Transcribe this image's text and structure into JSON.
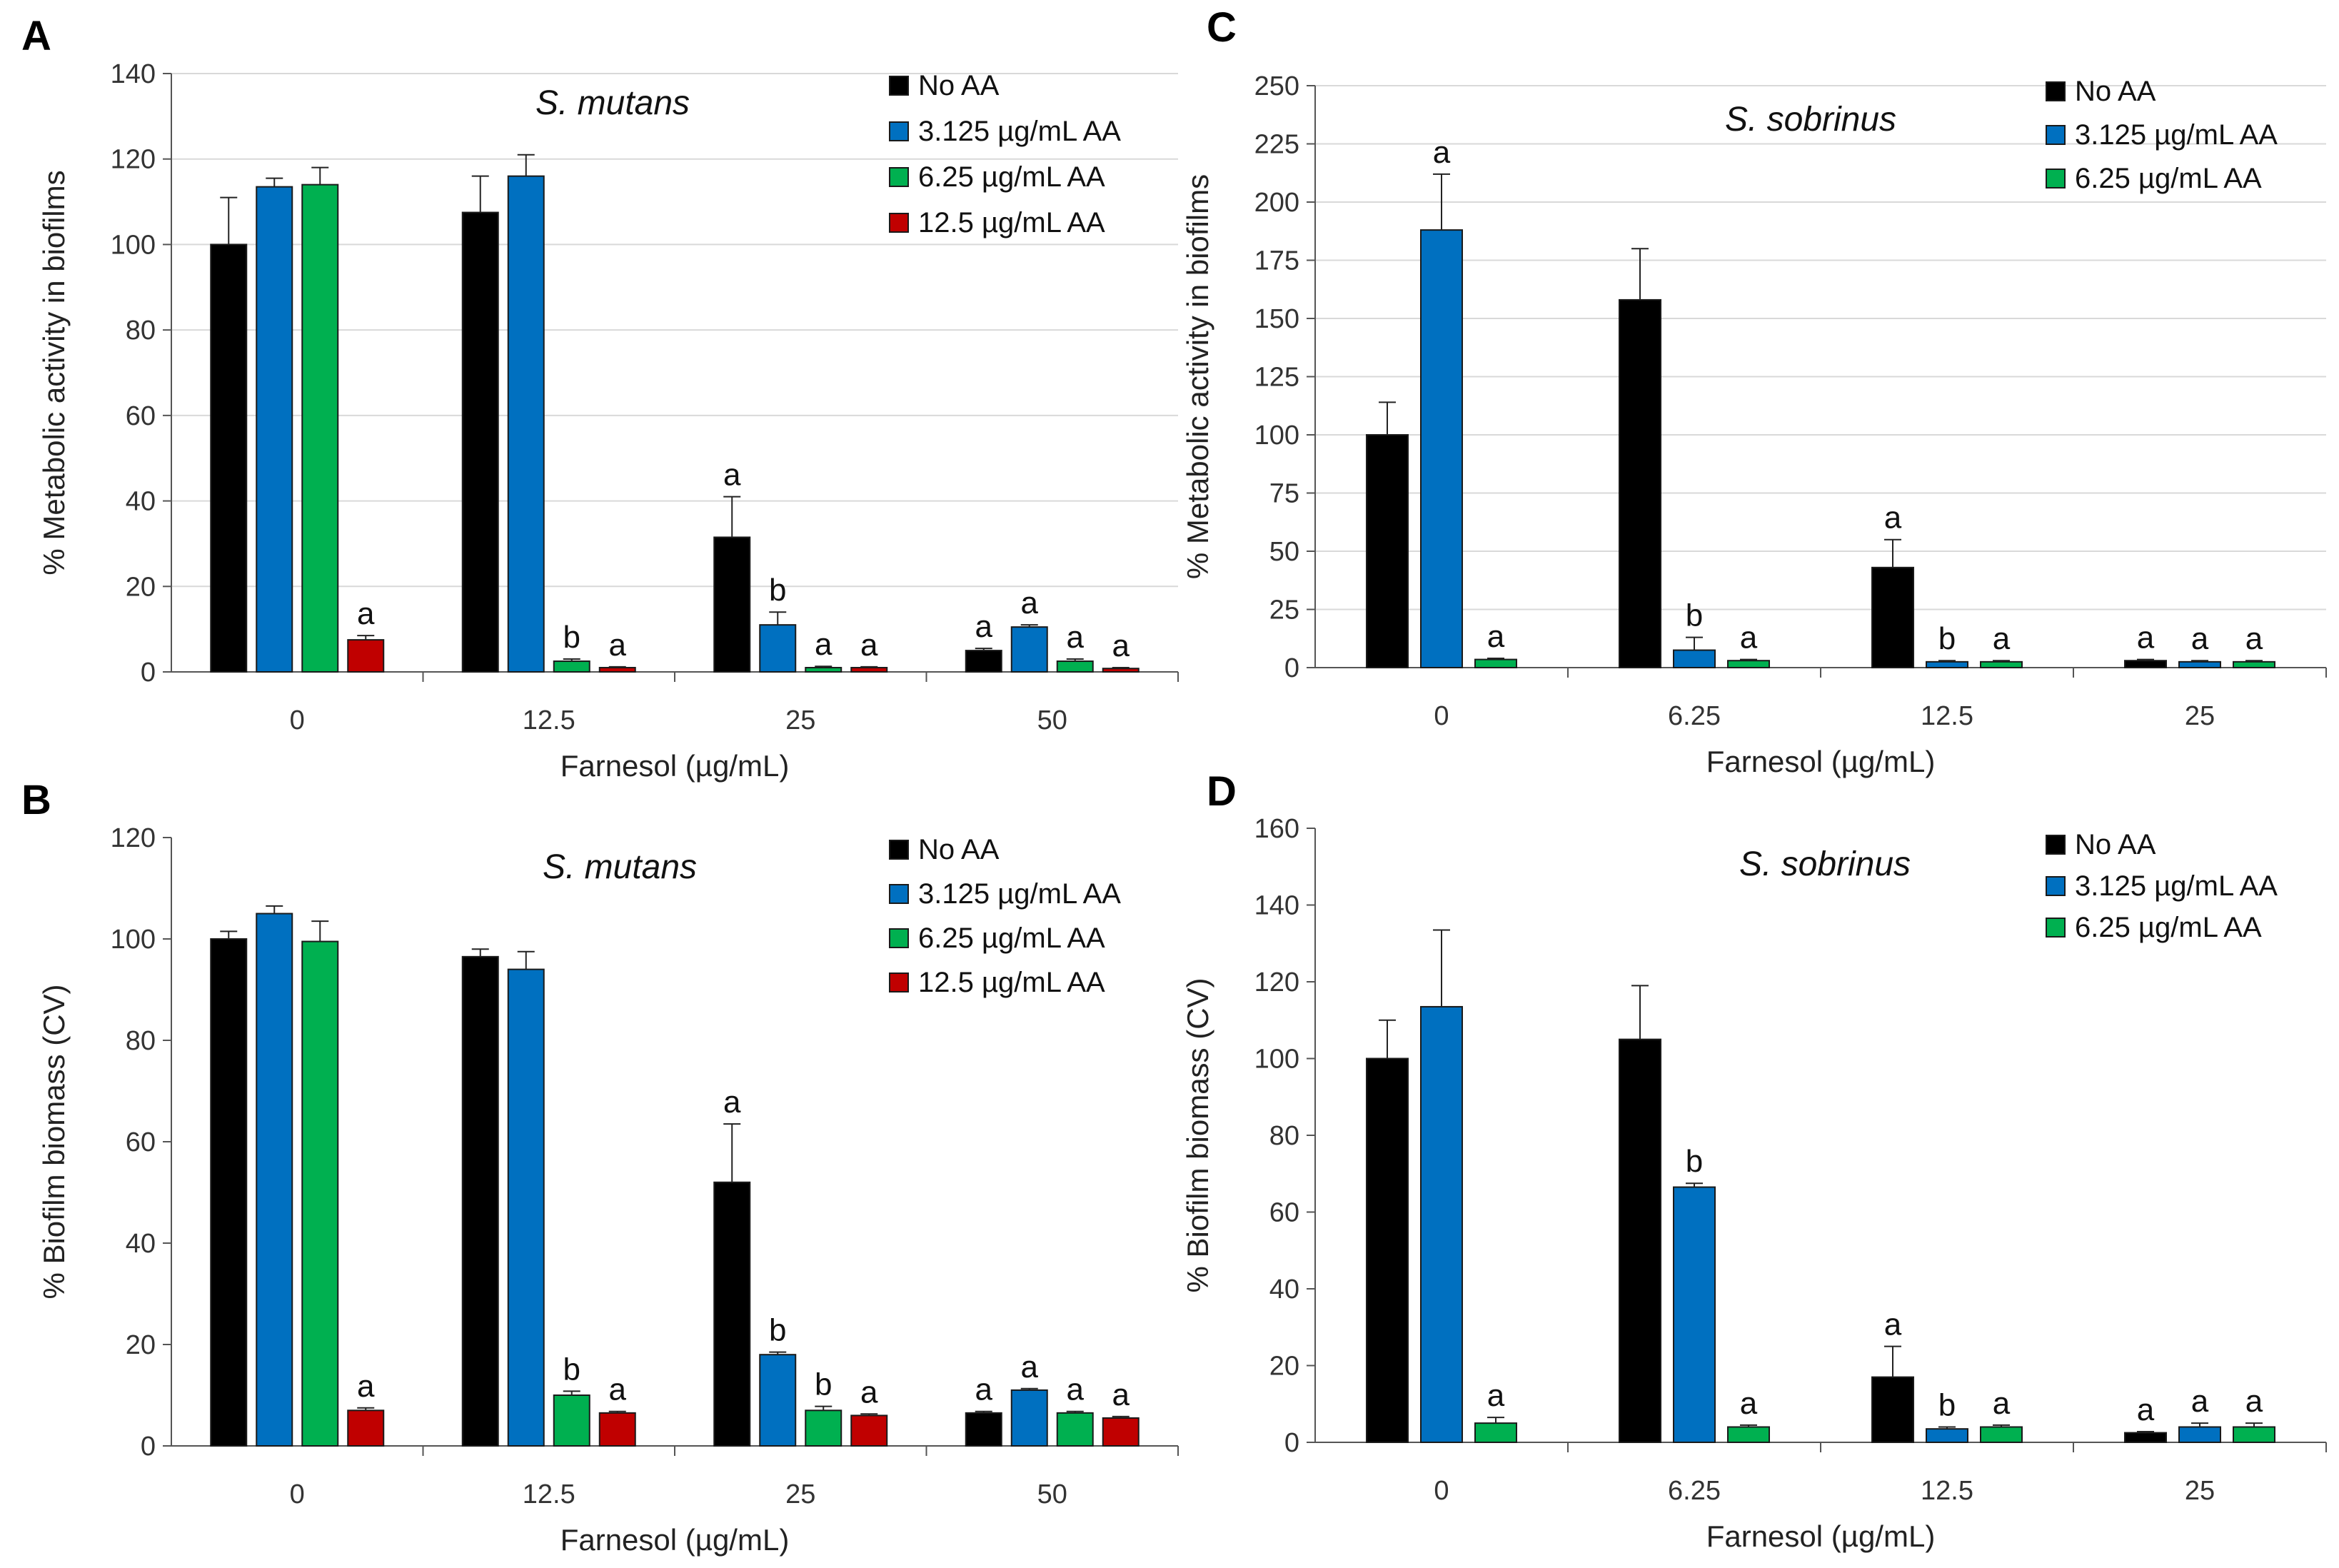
{
  "figure": {
    "colors": {
      "No AA": "#000000",
      "3.125 µg/mL AA": "#0070C0",
      "6.25 µg/mL AA": "#00B050",
      "12.5 µg/mL AA": "#C00000"
    }
  },
  "chart_data": [
    {
      "panel": "A",
      "type": "bar",
      "title": "S. mutans",
      "xlabel": "Farnesol (µg/mL)",
      "ylabel": "% Metabolic activity in biofilms",
      "ylim": [
        0,
        140
      ],
      "ystep": 20,
      "grid": true,
      "legend": "top-right",
      "categories": [
        "0",
        "12.5",
        "25",
        "50"
      ],
      "series": [
        {
          "name": "No AA",
          "values": [
            100,
            107.5,
            31.5,
            5
          ],
          "errors": [
            11,
            8.5,
            9.5,
            0.5
          ],
          "labels": [
            "",
            "",
            "a",
            "a"
          ]
        },
        {
          "name": "3.125 µg/mL AA",
          "values": [
            113.5,
            116,
            11,
            10.5
          ],
          "errors": [
            2,
            5,
            3,
            0.5
          ],
          "labels": [
            "",
            "",
            "b",
            "a"
          ]
        },
        {
          "name": "6.25 µg/mL AA",
          "values": [
            114,
            2.5,
            1,
            2.5
          ],
          "errors": [
            4,
            0.5,
            0.3,
            0.5
          ],
          "labels": [
            "",
            "b",
            "a",
            "a"
          ]
        },
        {
          "name": "12.5 µg/mL AA",
          "values": [
            7.5,
            1,
            1,
            0.8
          ],
          "errors": [
            1,
            0.2,
            0.2,
            0.2
          ],
          "labels": [
            "a",
            "a",
            "a",
            "a"
          ]
        }
      ]
    },
    {
      "panel": "B",
      "type": "bar",
      "title": "S. mutans",
      "xlabel": "Farnesol (µg/mL)",
      "ylabel": "% Biofilm biomass (CV)",
      "ylim": [
        0,
        120
      ],
      "ystep": 20,
      "grid": false,
      "legend": "top-right",
      "categories": [
        "0",
        "12.5",
        "25",
        "50"
      ],
      "series": [
        {
          "name": "No AA",
          "values": [
            100,
            96.5,
            52,
            6.5
          ],
          "errors": [
            1.5,
            1.5,
            11.5,
            0.3
          ],
          "labels": [
            "",
            "",
            "a",
            "a"
          ]
        },
        {
          "name": "3.125 µg/mL AA",
          "values": [
            105,
            94,
            18,
            11
          ],
          "errors": [
            1.5,
            3.5,
            0.5,
            0.3
          ],
          "labels": [
            "",
            "",
            "b",
            "a"
          ]
        },
        {
          "name": "6.25 µg/mL AA",
          "values": [
            99.5,
            10,
            7,
            6.5
          ],
          "errors": [
            4,
            0.8,
            0.8,
            0.3
          ],
          "labels": [
            "",
            "b",
            "b",
            "a"
          ]
        },
        {
          "name": "12.5 µg/mL AA",
          "values": [
            7,
            6.5,
            6,
            5.5
          ],
          "errors": [
            0.5,
            0.3,
            0.3,
            0.3
          ],
          "labels": [
            "a",
            "a",
            "a",
            "a"
          ]
        }
      ]
    },
    {
      "panel": "C",
      "type": "bar",
      "title": "S. sobrinus",
      "xlabel": "Farnesol (µg/mL)",
      "ylabel": "% Metabolic activity in biofilms",
      "ylim": [
        0,
        250
      ],
      "ystep": 25,
      "grid": true,
      "legend": "top-right",
      "categories": [
        "0",
        "6.25",
        "12.5",
        "25"
      ],
      "series": [
        {
          "name": "No AA",
          "values": [
            100,
            158,
            43,
            3
          ],
          "errors": [
            14,
            22,
            12,
            0.5
          ],
          "labels": [
            "",
            "",
            "a",
            "a"
          ]
        },
        {
          "name": "3.125 µg/mL AA",
          "values": [
            188,
            7.5,
            2.5,
            2.5
          ],
          "errors": [
            24,
            5.5,
            0.5,
            0.5
          ],
          "labels": [
            "a",
            "b",
            "b",
            "a"
          ]
        },
        {
          "name": "6.25 µg/mL AA",
          "values": [
            3.5,
            3,
            2.5,
            2.5
          ],
          "errors": [
            0.5,
            0.5,
            0.5,
            0.5
          ],
          "labels": [
            "a",
            "a",
            "a",
            "a"
          ]
        }
      ]
    },
    {
      "panel": "D",
      "type": "bar",
      "title": "S. sobrinus",
      "xlabel": "Farnesol (µg/mL)",
      "ylabel": "% Biofilm biomass (CV)",
      "ylim": [
        0,
        160
      ],
      "ystep": 20,
      "grid": false,
      "legend": "top-right",
      "categories": [
        "0",
        "6.25",
        "12.5",
        "25"
      ],
      "series": [
        {
          "name": "No AA",
          "values": [
            100,
            105,
            17,
            2.5
          ],
          "errors": [
            10,
            14,
            8,
            0.3
          ],
          "labels": [
            "",
            "",
            "a",
            "a"
          ]
        },
        {
          "name": "3.125 µg/mL AA",
          "values": [
            113.5,
            66.5,
            3.5,
            4
          ],
          "errors": [
            20,
            1,
            0.5,
            1
          ],
          "labels": [
            "",
            "b",
            "b",
            "a"
          ]
        },
        {
          "name": "6.25 µg/mL AA",
          "values": [
            5,
            4,
            4,
            4
          ],
          "errors": [
            1.5,
            0.5,
            0.5,
            1
          ],
          "labels": [
            "a",
            "a",
            "a",
            "a"
          ]
        }
      ]
    }
  ]
}
